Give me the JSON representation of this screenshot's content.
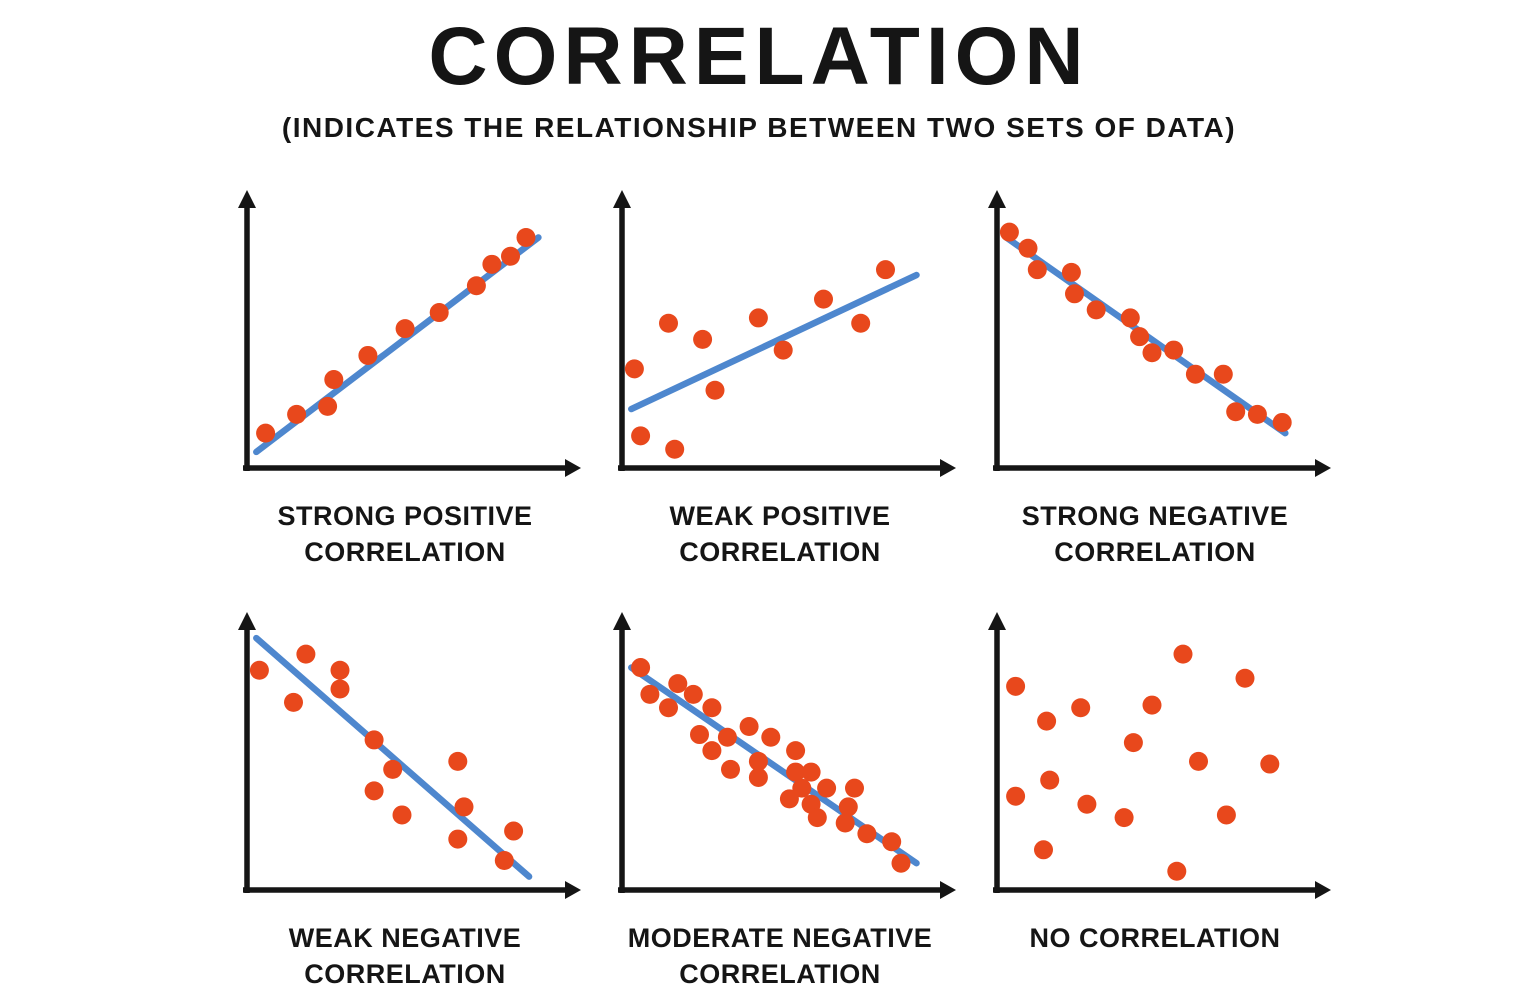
{
  "title": "CORRELATION",
  "subtitle": "(INDICATES THE RELATIONSHIP BETWEEN TWO SETS OF DATA)",
  "colors": {
    "background": "#ffffff",
    "text": "#151515",
    "axis": "#151515",
    "dot": "#e8481c",
    "trendline": "#4e87ce"
  },
  "chart_data": [
    {
      "type": "scatter",
      "title": "STRONG POSITIVE CORRELATION",
      "correlation": "strong positive",
      "xlim": [
        0,
        100
      ],
      "ylim": [
        0,
        100
      ],
      "grid": false,
      "axis_labels": null,
      "points": [
        [
          6,
          13
        ],
        [
          16,
          20
        ],
        [
          26,
          23
        ],
        [
          28,
          33
        ],
        [
          39,
          42
        ],
        [
          51,
          52
        ],
        [
          62,
          58
        ],
        [
          74,
          68
        ],
        [
          79,
          76
        ],
        [
          85,
          79
        ],
        [
          90,
          86
        ]
      ],
      "trendline": {
        "x1": 3,
        "y1": 6,
        "x2": 94,
        "y2": 86
      }
    },
    {
      "type": "scatter",
      "title": "WEAK POSITIVE CORRELATION",
      "correlation": "weak positive",
      "xlim": [
        0,
        100
      ],
      "ylim": [
        0,
        100
      ],
      "grid": false,
      "axis_labels": null,
      "points": [
        [
          4,
          37
        ],
        [
          6,
          12
        ],
        [
          15,
          54
        ],
        [
          17,
          7
        ],
        [
          26,
          48
        ],
        [
          30,
          29
        ],
        [
          44,
          56
        ],
        [
          52,
          44
        ],
        [
          65,
          63
        ],
        [
          77,
          54
        ],
        [
          85,
          74
        ]
      ],
      "trendline": {
        "x1": 3,
        "y1": 22,
        "x2": 95,
        "y2": 72
      }
    },
    {
      "type": "scatter",
      "title": "STRONG NEGATIVE CORRELATION",
      "correlation": "strong negative",
      "xlim": [
        0,
        100
      ],
      "ylim": [
        0,
        100
      ],
      "grid": false,
      "axis_labels": null,
      "points": [
        [
          4,
          88
        ],
        [
          10,
          82
        ],
        [
          13,
          74
        ],
        [
          24,
          73
        ],
        [
          25,
          65
        ],
        [
          32,
          59
        ],
        [
          43,
          56
        ],
        [
          46,
          49
        ],
        [
          50,
          43
        ],
        [
          57,
          44
        ],
        [
          64,
          35
        ],
        [
          73,
          35
        ],
        [
          77,
          21
        ],
        [
          84,
          20
        ],
        [
          92,
          17
        ]
      ],
      "trendline": {
        "x1": 3,
        "y1": 86,
        "x2": 93,
        "y2": 13
      }
    },
    {
      "type": "scatter",
      "title": "WEAK NEGATIVE CORRELATION",
      "correlation": "weak negative",
      "xlim": [
        0,
        100
      ],
      "ylim": [
        0,
        100
      ],
      "grid": false,
      "axis_labels": null,
      "points": [
        [
          4,
          82
        ],
        [
          19,
          88
        ],
        [
          15,
          70
        ],
        [
          30,
          82
        ],
        [
          30,
          75
        ],
        [
          41,
          56
        ],
        [
          47,
          45
        ],
        [
          41,
          37
        ],
        [
          50,
          28
        ],
        [
          68,
          48
        ],
        [
          70,
          31
        ],
        [
          68,
          19
        ],
        [
          86,
          22
        ],
        [
          83,
          11
        ]
      ],
      "trendline": {
        "x1": 3,
        "y1": 94,
        "x2": 91,
        "y2": 5
      }
    },
    {
      "type": "scatter",
      "title": "MODERATE NEGATIVE CORRELATION",
      "correlation": "moderate negative",
      "xlim": [
        0,
        100
      ],
      "ylim": [
        0,
        100
      ],
      "grid": false,
      "axis_labels": null,
      "points": [
        [
          6,
          83
        ],
        [
          9,
          73
        ],
        [
          18,
          77
        ],
        [
          23,
          73
        ],
        [
          15,
          68
        ],
        [
          29,
          68
        ],
        [
          25,
          58
        ],
        [
          34,
          57
        ],
        [
          29,
          52
        ],
        [
          35,
          45
        ],
        [
          41,
          61
        ],
        [
          44,
          48
        ],
        [
          44,
          42
        ],
        [
          48,
          57
        ],
        [
          56,
          52
        ],
        [
          56,
          44
        ],
        [
          58,
          38
        ],
        [
          61,
          44
        ],
        [
          54,
          34
        ],
        [
          61,
          32
        ],
        [
          66,
          38
        ],
        [
          63,
          27
        ],
        [
          72,
          25
        ],
        [
          75,
          38
        ],
        [
          73,
          31
        ],
        [
          79,
          21
        ],
        [
          87,
          18
        ],
        [
          90,
          10
        ]
      ],
      "trendline": {
        "x1": 3,
        "y1": 83,
        "x2": 95,
        "y2": 10
      }
    },
    {
      "type": "scatter",
      "title": "NO CORRELATION",
      "correlation": "none",
      "xlim": [
        0,
        100
      ],
      "ylim": [
        0,
        100
      ],
      "grid": false,
      "axis_labels": null,
      "points": [
        [
          6,
          76
        ],
        [
          60,
          88
        ],
        [
          80,
          79
        ],
        [
          27,
          68
        ],
        [
          50,
          69
        ],
        [
          16,
          63
        ],
        [
          44,
          55
        ],
        [
          65,
          48
        ],
        [
          88,
          47
        ],
        [
          17,
          41
        ],
        [
          6,
          35
        ],
        [
          29,
          32
        ],
        [
          41,
          27
        ],
        [
          74,
          28
        ],
        [
          15,
          15
        ],
        [
          58,
          7
        ]
      ],
      "trendline": null
    }
  ]
}
